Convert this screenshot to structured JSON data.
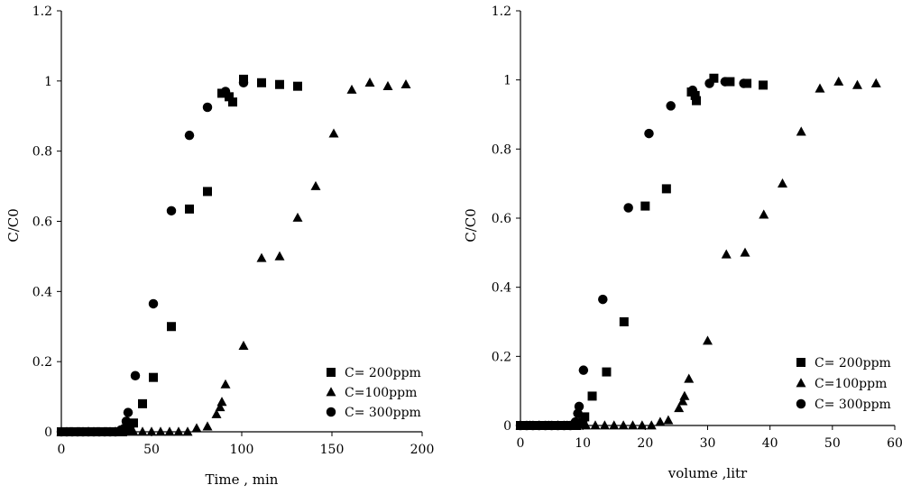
{
  "chart_data": [
    {
      "type": "scatter",
      "title": "",
      "xlabel": "Time , min",
      "ylabel": "C/C0",
      "xlim": [
        0,
        200
      ],
      "ylim": [
        0,
        1.2
      ],
      "xticks": [
        0,
        50,
        100,
        150,
        200
      ],
      "yticks": [
        0,
        0.2,
        0.4,
        0.6,
        0.8,
        1,
        1.2
      ],
      "ytick_labels": [
        "0",
        "0.2",
        "0.4",
        "0.6",
        "0.8",
        "1",
        "1.2"
      ],
      "grid": false,
      "legend_position": "bottom-right",
      "series": [
        {
          "name": "C= 200ppm",
          "marker": "square",
          "points": [
            [
              0,
              0
            ],
            [
              2,
              0
            ],
            [
              4,
              0
            ],
            [
              6,
              0
            ],
            [
              8,
              0
            ],
            [
              10,
              0
            ],
            [
              12,
              0
            ],
            [
              14,
              0
            ],
            [
              16,
              0
            ],
            [
              18,
              0
            ],
            [
              20,
              0
            ],
            [
              22,
              0
            ],
            [
              24,
              0
            ],
            [
              26,
              0
            ],
            [
              28,
              0
            ],
            [
              30,
              0
            ],
            [
              32,
              0
            ],
            [
              34,
              0
            ],
            [
              36,
              0.005
            ],
            [
              38,
              0.01
            ],
            [
              40,
              0.025
            ],
            [
              45,
              0.08
            ],
            [
              51,
              0.155
            ],
            [
              61,
              0.3
            ],
            [
              71,
              0.635
            ],
            [
              81,
              0.685
            ],
            [
              89,
              0.965
            ],
            [
              93,
              0.955
            ],
            [
              95,
              0.94
            ],
            [
              101,
              1.005
            ],
            [
              111,
              0.995
            ],
            [
              121,
              0.99
            ],
            [
              131,
              0.985
            ]
          ]
        },
        {
          "name": "C=100ppm",
          "marker": "triangle",
          "points": [
            [
              0,
              0
            ],
            [
              5,
              0
            ],
            [
              10,
              0
            ],
            [
              15,
              0
            ],
            [
              20,
              0
            ],
            [
              25,
              0
            ],
            [
              30,
              0
            ],
            [
              35,
              0
            ],
            [
              40,
              0
            ],
            [
              45,
              0
            ],
            [
              50,
              0
            ],
            [
              55,
              0
            ],
            [
              60,
              0
            ],
            [
              65,
              0
            ],
            [
              70,
              0
            ],
            [
              75,
              0.01
            ],
            [
              81,
              0.015
            ],
            [
              86,
              0.05
            ],
            [
              88,
              0.07
            ],
            [
              89,
              0.085
            ],
            [
              91,
              0.135
            ],
            [
              101,
              0.245
            ],
            [
              111,
              0.495
            ],
            [
              121,
              0.5
            ],
            [
              131,
              0.61
            ],
            [
              141,
              0.7
            ],
            [
              151,
              0.85
            ],
            [
              161,
              0.975
            ],
            [
              171,
              0.995
            ],
            [
              181,
              0.985
            ],
            [
              191,
              0.99
            ]
          ]
        },
        {
          "name": "C= 300ppm",
          "marker": "circle",
          "points": [
            [
              0,
              0
            ],
            [
              3,
              0
            ],
            [
              6,
              0
            ],
            [
              9,
              0
            ],
            [
              12,
              0
            ],
            [
              15,
              0
            ],
            [
              18,
              0
            ],
            [
              21,
              0
            ],
            [
              24,
              0
            ],
            [
              27,
              0
            ],
            [
              30,
              0
            ],
            [
              33,
              0.005
            ],
            [
              35,
              0.01
            ],
            [
              36,
              0.03
            ],
            [
              37,
              0.055
            ],
            [
              41,
              0.16
            ],
            [
              51,
              0.365
            ],
            [
              61,
              0.63
            ],
            [
              71,
              0.845
            ],
            [
              81,
              0.925
            ],
            [
              91,
              0.97
            ],
            [
              101,
              0.995
            ]
          ]
        }
      ]
    },
    {
      "type": "scatter",
      "title": "",
      "xlabel": "volume ,litr",
      "ylabel": "C/C0",
      "xlim": [
        0,
        60
      ],
      "ylim": [
        0,
        1.2
      ],
      "xticks": [
        0,
        10,
        20,
        30,
        40,
        50,
        60
      ],
      "yticks": [
        0,
        0.2,
        0.4,
        0.6,
        0.8,
        1,
        1.2
      ],
      "ytick_labels": [
        "0",
        "0.2",
        "0.4",
        "0.6",
        "0.8",
        "1",
        "1.2"
      ],
      "grid": false,
      "legend_position": "bottom-right",
      "series": [
        {
          "name": "C= 200ppm",
          "marker": "square",
          "points": [
            [
              0,
              0
            ],
            [
              0.6,
              0
            ],
            [
              1.2,
              0
            ],
            [
              1.8,
              0
            ],
            [
              2.4,
              0
            ],
            [
              3,
              0
            ],
            [
              3.6,
              0
            ],
            [
              4.2,
              0
            ],
            [
              4.8,
              0
            ],
            [
              5.4,
              0
            ],
            [
              6,
              0
            ],
            [
              6.6,
              0
            ],
            [
              7.2,
              0
            ],
            [
              7.8,
              0
            ],
            [
              8.4,
              0
            ],
            [
              9,
              0
            ],
            [
              9.6,
              0.005
            ],
            [
              10,
              0.01
            ],
            [
              10.3,
              0.025
            ],
            [
              11.5,
              0.085
            ],
            [
              13.8,
              0.155
            ],
            [
              16.6,
              0.3
            ],
            [
              20,
              0.635
            ],
            [
              23.4,
              0.685
            ],
            [
              27.4,
              0.965
            ],
            [
              28,
              0.955
            ],
            [
              28.2,
              0.94
            ],
            [
              31,
              1.005
            ],
            [
              33.6,
              0.995
            ],
            [
              36.3,
              0.99
            ],
            [
              38.9,
              0.985
            ]
          ]
        },
        {
          "name": "C=100ppm",
          "marker": "triangle",
          "points": [
            [
              0,
              0
            ],
            [
              1.5,
              0
            ],
            [
              3,
              0
            ],
            [
              4.5,
              0
            ],
            [
              6,
              0
            ],
            [
              7.5,
              0
            ],
            [
              9,
              0
            ],
            [
              10.5,
              0
            ],
            [
              12,
              0
            ],
            [
              13.5,
              0
            ],
            [
              15,
              0
            ],
            [
              16.5,
              0
            ],
            [
              18,
              0
            ],
            [
              19.5,
              0
            ],
            [
              21,
              0
            ],
            [
              22.4,
              0.01
            ],
            [
              23.7,
              0.015
            ],
            [
              25.4,
              0.05
            ],
            [
              26,
              0.07
            ],
            [
              26.3,
              0.085
            ],
            [
              27,
              0.135
            ],
            [
              30,
              0.245
            ],
            [
              33,
              0.495
            ],
            [
              36,
              0.5
            ],
            [
              39,
              0.61
            ],
            [
              42,
              0.7
            ],
            [
              45,
              0.85
            ],
            [
              48,
              0.975
            ],
            [
              51,
              0.995
            ],
            [
              54,
              0.985
            ],
            [
              57,
              0.99
            ]
          ]
        },
        {
          "name": "C= 300ppm",
          "marker": "circle",
          "points": [
            [
              0,
              0
            ],
            [
              1,
              0
            ],
            [
              2,
              0
            ],
            [
              3,
              0
            ],
            [
              4,
              0
            ],
            [
              5,
              0
            ],
            [
              6,
              0
            ],
            [
              7,
              0
            ],
            [
              8,
              0
            ],
            [
              8.8,
              0.01
            ],
            [
              9.2,
              0.035
            ],
            [
              9.4,
              0.055
            ],
            [
              10.1,
              0.16
            ],
            [
              13.2,
              0.365
            ],
            [
              17.3,
              0.63
            ],
            [
              20.6,
              0.845
            ],
            [
              24.1,
              0.925
            ],
            [
              27.6,
              0.97
            ],
            [
              30.3,
              0.99
            ],
            [
              32.8,
              0.995
            ],
            [
              35.8,
              0.99
            ]
          ]
        }
      ]
    }
  ]
}
